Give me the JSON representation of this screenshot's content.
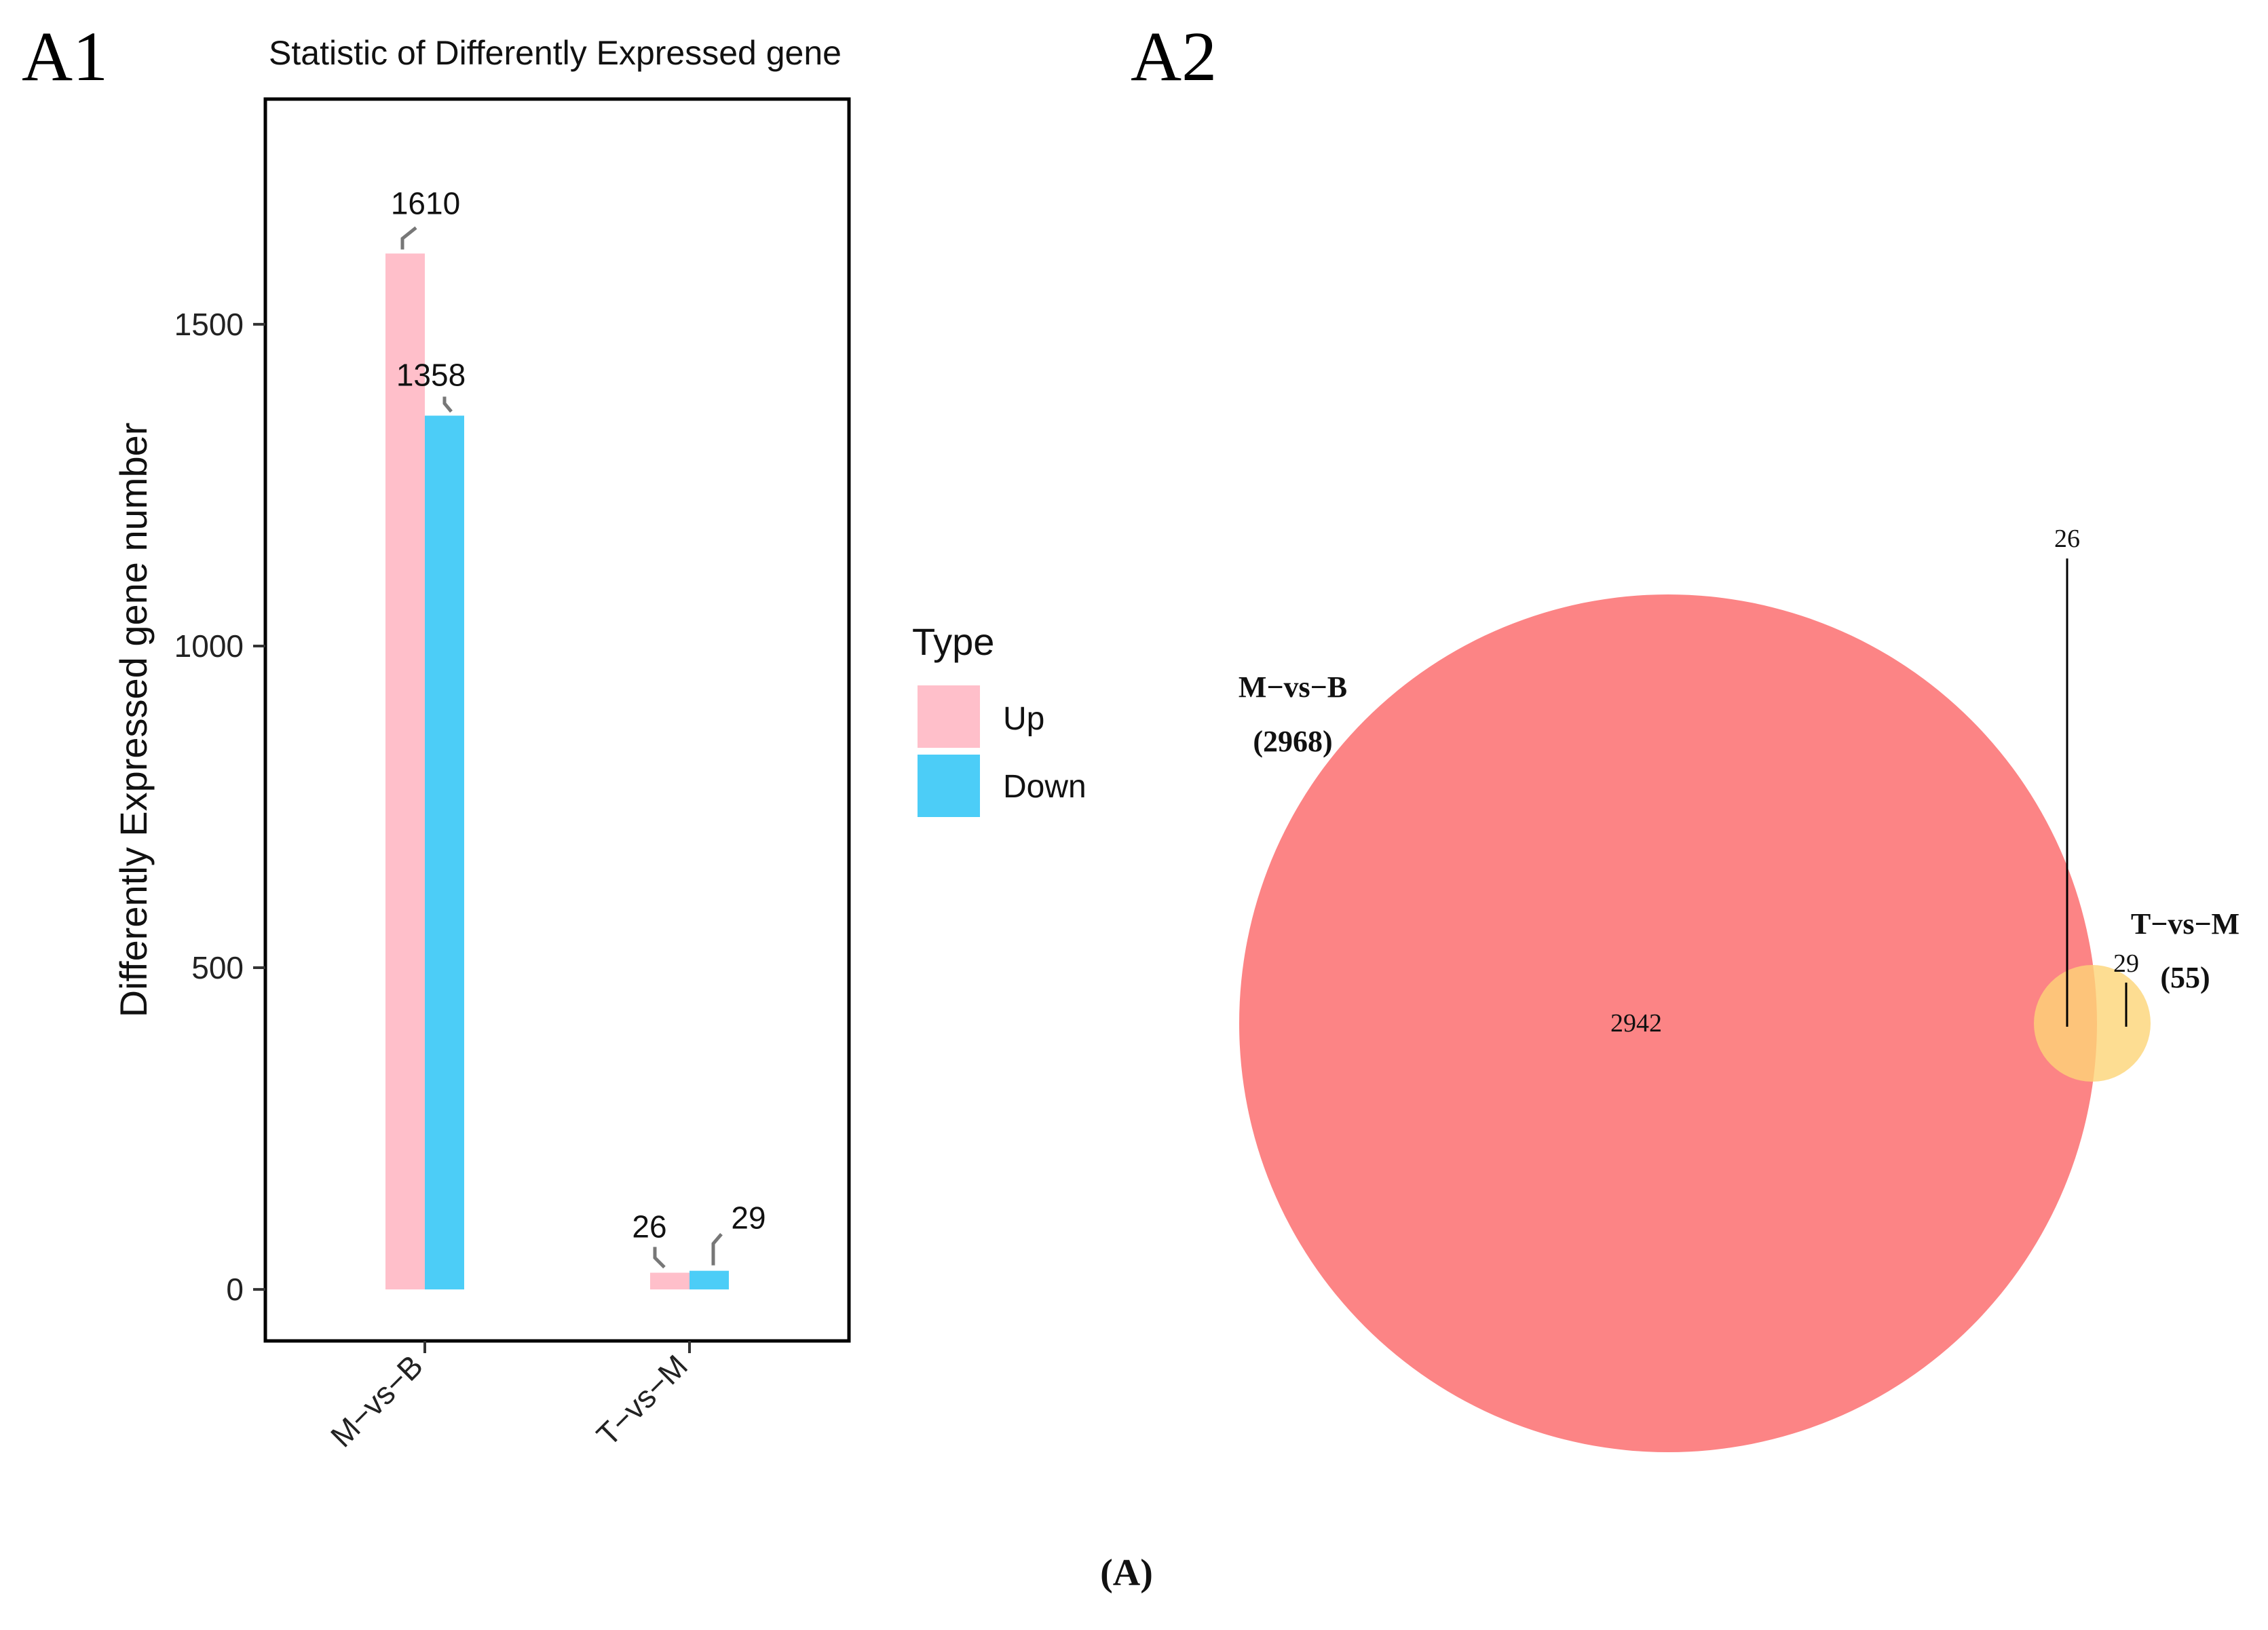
{
  "panels": {
    "left": "A1",
    "right": "A2"
  },
  "caption": "(A)",
  "chart_data": [
    {
      "type": "bar",
      "title": "Statistic of Differently Expressed gene",
      "xlabel": "",
      "ylabel": "Differently Expressed gene number",
      "categories": [
        "M−vs−B",
        "T−vs−M"
      ],
      "series": [
        {
          "name": "Up",
          "color": "#ffbfca",
          "values": [
            1610,
            26
          ]
        },
        {
          "name": "Down",
          "color": "#4ccdf7",
          "values": [
            1358,
            29
          ]
        }
      ],
      "yticks": [
        0,
        500,
        1000,
        1500
      ],
      "ylim": [
        -80,
        1850
      ],
      "legend": {
        "title": "Type",
        "placement": "right"
      }
    },
    {
      "type": "venn",
      "sets": [
        {
          "name": "M−vs−B",
          "total_label": "(2968)",
          "total": 2968,
          "color": "#fb6f70"
        },
        {
          "name": "T−vs−M",
          "total_label": "(55)",
          "total": 55,
          "color": "#fdd477"
        }
      ],
      "regions": {
        "only_first": 2942,
        "intersection": 26,
        "only_second": 29
      },
      "region_labels": {
        "only_first": "2942",
        "intersection": "26",
        "only_second": "29"
      }
    }
  ]
}
